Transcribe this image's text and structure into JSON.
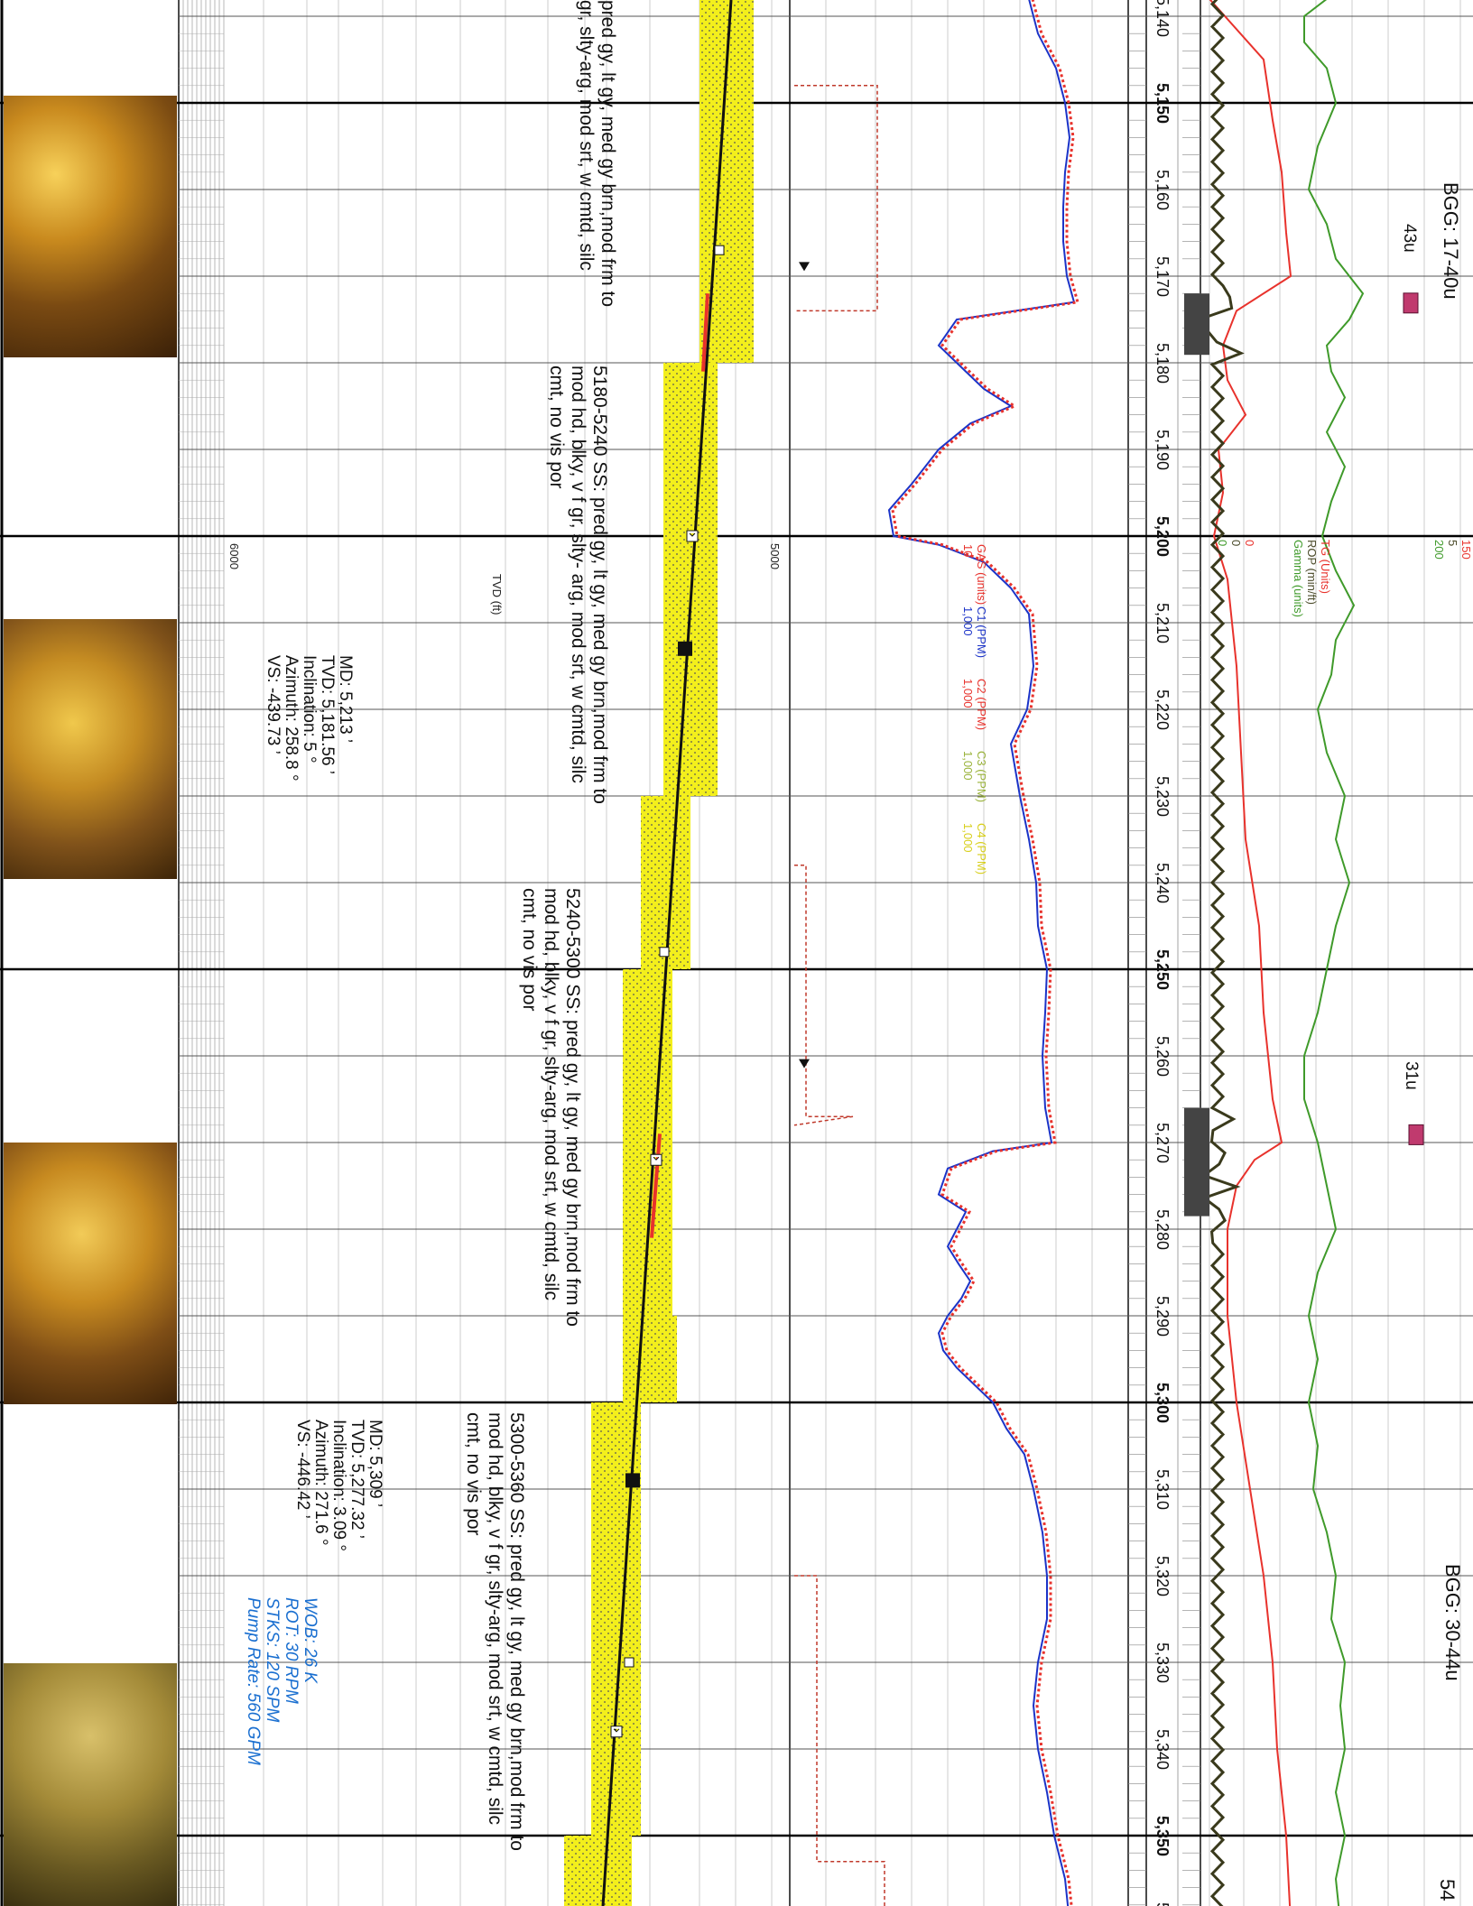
{
  "depth_labels": [
    "5,140",
    "5,150",
    "5,160",
    "5,170",
    "5,180",
    "5,190",
    "5,200",
    "5,210",
    "5,220",
    "5,230",
    "5,240",
    "5,250",
    "5,260",
    "5,270",
    "5,280",
    "5,290",
    "5,300",
    "5,310",
    "5,320",
    "5,330",
    "5,340",
    "5,350",
    "5"
  ],
  "bold_depths": [
    "5,150",
    "5,200",
    "5,250",
    "5,300",
    "5,350"
  ],
  "lithology_descriptions": [
    {
      "lines": [
        "pred gy, lt gy, med gy brn,mod frm to",
        "gr, slty-arg, mod srt, w cmtd, silc"
      ]
    },
    {
      "lines": [
        "5180-5240 SS: pred gy, lt gy, med gy brn,mod frm to",
        "mod hd, blky, v f gr, slty- arg, mod srt, w cmtd, silc",
        "cmt, no vis por"
      ]
    },
    {
      "lines": [
        "5240-5300 SS: pred gy, lt gy, med gy brn,mod frm to",
        "mod hd, blky, v f gr, slty-arg, mod srt, w cmtd, silc",
        "cmt, no vis por"
      ]
    },
    {
      "lines": [
        "5300-5360 SS: pred gy, lt gy, med gy brn,mod frm to",
        "mod hd, blky, v f gr, slty-arg, mod srt, w cmtd, silc",
        "cmt, no vis por"
      ]
    }
  ],
  "survey_points": [
    {
      "lines": [
        "MD: 5,213 ’",
        "TVD: 5,181.56 ’",
        "Inclination: 5 °",
        "Azimuth: 258.8 °",
        "VS: -439.73 ’"
      ]
    },
    {
      "lines": [
        "MD: 5,309 ’",
        "TVD: 5,277.32 ’",
        "Inclination: 3.09 °",
        "Azimuth: 271.6 °",
        "VS: -446.42 ’"
      ]
    }
  ],
  "drilling_params": [
    "WOB: 26 K",
    "ROT: 30 RPM",
    "STKS: 120 SPM",
    "Pump Rate: 560  GPM"
  ],
  "tvd_axis": {
    "title": "TVD (ft)",
    "ticks": [
      "5000",
      "6000"
    ]
  },
  "gas_header": {
    "curves": [
      {
        "name": "GAS (units)",
        "scale": "10",
        "color": "#e8322c"
      },
      {
        "name": "C1 (PPM)",
        "scale": "1,000",
        "color": "#1b33c8"
      },
      {
        "name": "C2 (PPM)",
        "scale": "1,000",
        "color": "#e8322c"
      },
      {
        "name": "C3 (PPM)",
        "scale": "1,000",
        "color": "#9ab33a"
      },
      {
        "name": "C4 (PPM)",
        "scale": "1,000",
        "color": "#d8cf1a"
      }
    ]
  },
  "rop_header": {
    "curves": [
      {
        "name": "TG (Units)",
        "left": "0",
        "right": "150",
        "color": "#e8322c"
      },
      {
        "name": "ROP (min/ft)",
        "left": "0",
        "right": "5",
        "color": "#4b4b2a"
      },
      {
        "name": "Gamma (units)",
        "left": "0",
        "right": "200",
        "color": "#3f9a2a"
      }
    ]
  },
  "background_gas": [
    "BGG: 17-40u",
    "BGG: 30-44u"
  ],
  "gas_peaks": [
    "43u",
    "31u"
  ],
  "edge_number": "54",
  "colors": {
    "sandstone": "#f3ef1c",
    "wellbore": "#111111",
    "total_gas": "#e8322c",
    "c1": "#1b33c8",
    "gamma": "#3f9a2a",
    "rop": "#3a3a1c",
    "drilling_params": "#1a6fd0"
  }
}
